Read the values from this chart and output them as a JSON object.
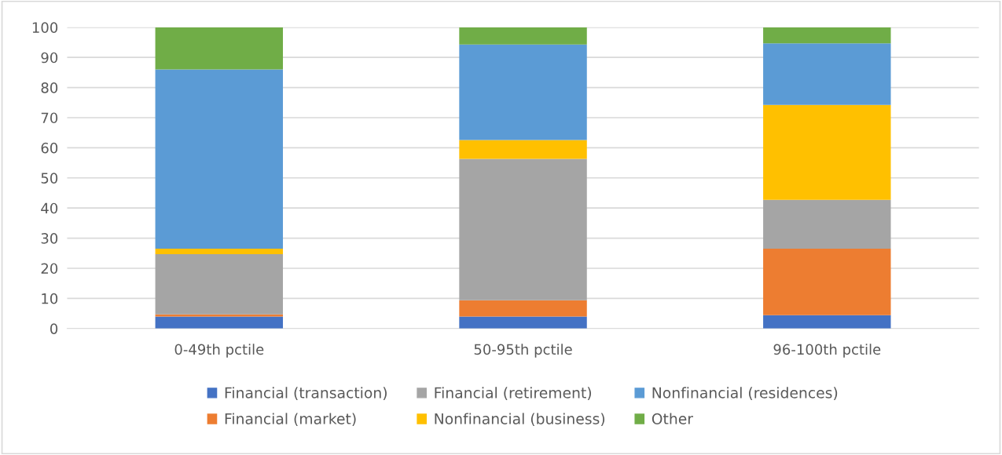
{
  "chart_data": {
    "type": "bar",
    "stacked": true,
    "categories": [
      "0-49th pctile",
      "50-95th pctile",
      "96-100th pctile"
    ],
    "series": [
      {
        "name": "Financial (transaction)",
        "color": "#4472c4",
        "values": [
          4.0,
          4.0,
          4.4
        ]
      },
      {
        "name": "Financial (market)",
        "color": "#ed7d31",
        "values": [
          0.7,
          5.4,
          22.1
        ]
      },
      {
        "name": "Financial (retirement)",
        "color": "#a5a5a5",
        "values": [
          20.0,
          46.9,
          16.2
        ]
      },
      {
        "name": "Nonfinancial (business)",
        "color": "#ffc000",
        "values": [
          1.8,
          6.3,
          31.5
        ]
      },
      {
        "name": "Nonfinancial (residences)",
        "color": "#5b9bd5",
        "values": [
          59.5,
          31.7,
          20.5
        ]
      },
      {
        "name": "Other",
        "color": "#70ad47",
        "values": [
          14.0,
          5.7,
          5.3
        ]
      }
    ],
    "ylim": [
      0,
      100
    ],
    "yticks": [
      0,
      10,
      20,
      30,
      40,
      50,
      60,
      70,
      80,
      90,
      100
    ],
    "grid": "y",
    "legend": "bottom"
  }
}
